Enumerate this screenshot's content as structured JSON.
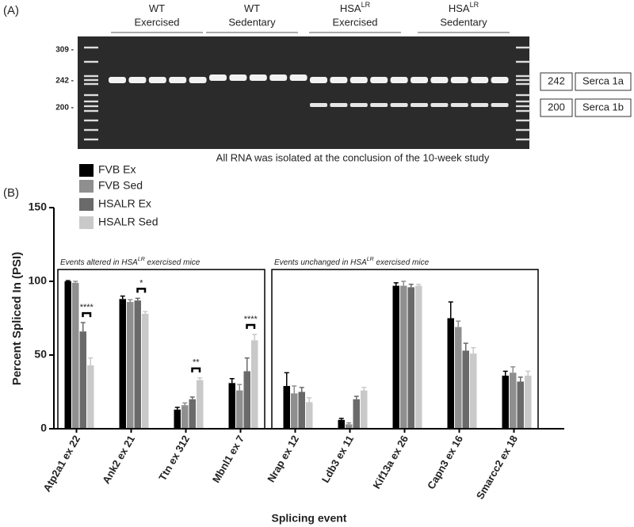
{
  "panel_a": {
    "label": "(A)",
    "groups": [
      {
        "top": [
          "WT"
        ],
        "bottom": "Exercised"
      },
      {
        "top": [
          "WT"
        ],
        "bottom": "Sedentary"
      },
      {
        "top": [
          "HSA",
          "LR"
        ],
        "bottom": "Exercised"
      },
      {
        "top": [
          "HSA",
          "LR"
        ],
        "bottom": "Sedentary"
      }
    ],
    "ladder_labels": [
      "309 -",
      "242 -",
      "200 -"
    ],
    "band_boxes": [
      [
        "242",
        "Serca 1a"
      ],
      [
        "200",
        "Serca 1b"
      ]
    ],
    "caption": "All RNA was isolated at the conclusion of the 10-week study"
  },
  "chart_data": {
    "type": "bar",
    "panel_label": "(B)",
    "y_label": "Percent Spliced In (PSI)",
    "x_label": "Splicing event",
    "categories": [
      "Atp2a1 ex 22",
      "Ank2 ex 21",
      "Ttn ex 312",
      "Mbnl1 ex 7",
      "Nrap ex 12",
      "Ldb3 ex 11",
      "Kif13a ex 26",
      "Capn3 ex 16",
      "Smarcc2 ex 18"
    ],
    "series": [
      {
        "name": "FVB Ex",
        "color": "#000000",
        "values": [
          100,
          88,
          13,
          31,
          29,
          6,
          97,
          75,
          36
        ],
        "errors": [
          0.5,
          2,
          1.5,
          3,
          9,
          1,
          2,
          11,
          3
        ]
      },
      {
        "name": "FVB Sed",
        "color": "#8f8f8f",
        "values": [
          99,
          86,
          16,
          26,
          24,
          3,
          97,
          69,
          38
        ],
        "errors": [
          1,
          1.5,
          1.5,
          4,
          5,
          1,
          3,
          4,
          4
        ]
      },
      {
        "name": "HSALR Ex",
        "color": "#6a6a6a",
        "values": [
          66,
          87,
          20,
          39,
          25,
          20,
          96,
          53,
          32
        ],
        "errors": [
          6,
          1.5,
          1.5,
          9,
          3,
          2,
          2,
          5,
          3
        ]
      },
      {
        "name": "HSALR Sed",
        "color": "#c9c9c9",
        "values": [
          43,
          78,
          33,
          60,
          18,
          26,
          97,
          51,
          36
        ],
        "errors": [
          5,
          1.5,
          1.5,
          4,
          3,
          2,
          1,
          4,
          3
        ]
      }
    ],
    "ylim": [
      0,
      150
    ],
    "yticks": [
      0,
      50,
      100,
      150
    ],
    "group_boxes": [
      {
        "label": [
          "Events altered in HSA",
          "LR",
          " exercised mice"
        ],
        "from": "Atp2a1 ex 22",
        "to": "Mbnl1 ex 7"
      },
      {
        "label": [
          "Events unchanged in HSA",
          "LR",
          " exercised mice"
        ],
        "from": "Nrap ex 12",
        "to": "Smarcc2 ex 18"
      }
    ],
    "significance": [
      {
        "category": "Atp2a1 ex 22",
        "label": "****"
      },
      {
        "category": "Ank2 ex 21",
        "label": "*"
      },
      {
        "category": "Ttn ex 312",
        "label": "**"
      },
      {
        "category": "Mbnl1 ex 7",
        "label": "****"
      }
    ]
  }
}
